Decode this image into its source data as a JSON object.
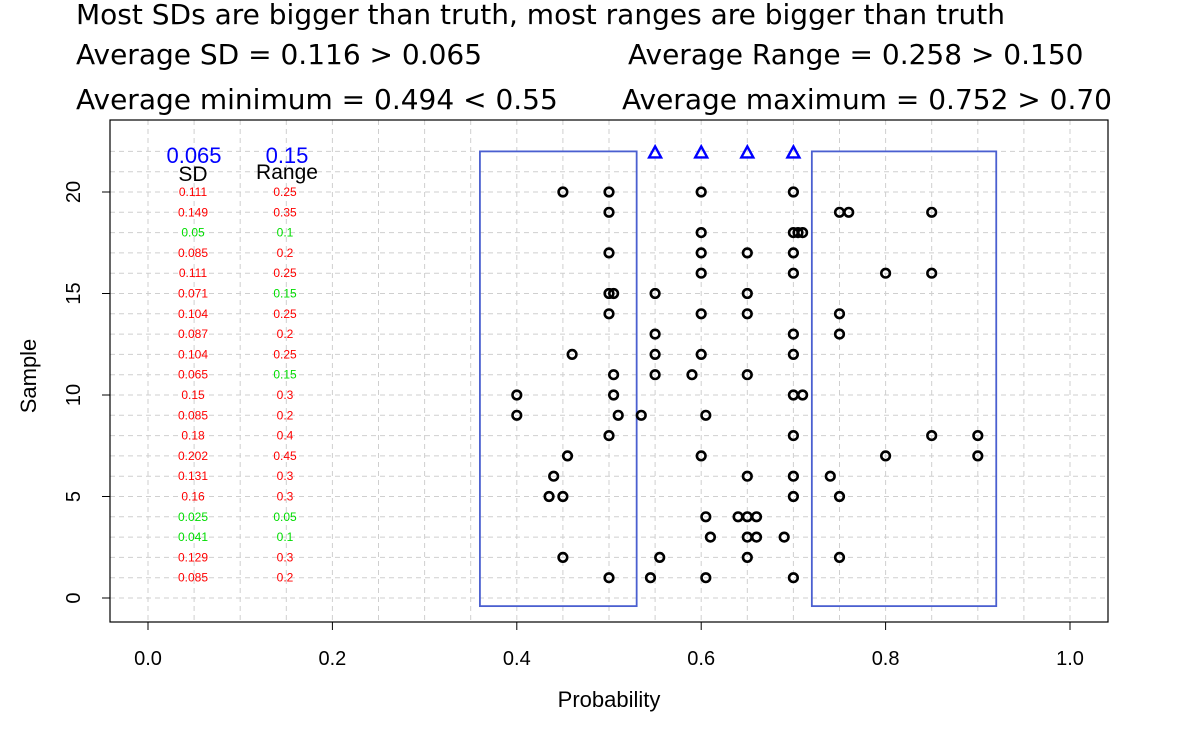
{
  "headlines": {
    "line1": "Most SDs are bigger than truth, most ranges are bigger than truth",
    "avg_sd": "Average SD = 0.116 > 0.065",
    "avg_range": "Average Range = 0.258 > 0.150",
    "avg_min": "Average minimum = 0.494 < 0.55",
    "avg_max": "Average maximum = 0.752 > 0.70"
  },
  "chart_data": {
    "type": "scatter",
    "xlabel": "Probability",
    "ylabel": "Sample",
    "xlim": [
      0,
      1
    ],
    "ylim": [
      0,
      22
    ],
    "x_ticks": [
      "0.0",
      "0.2",
      "0.4",
      "0.6",
      "0.8",
      "1.0"
    ],
    "y_ticks": [
      "0",
      "5",
      "10",
      "15",
      "20"
    ],
    "grid": true,
    "truth_markers": {
      "symbol": "triangle",
      "color": "#0000ff",
      "x": [
        0.55,
        0.6,
        0.65,
        0.7
      ],
      "y": 22
    },
    "reference_boxes": [
      {
        "x_min": 0.36,
        "x_max": 0.53,
        "y_min": -0.4,
        "y_max": 22
      },
      {
        "x_min": 0.72,
        "x_max": 0.92,
        "y_min": -0.4,
        "y_max": 22
      }
    ],
    "box_color": "#4a5fd0",
    "table": {
      "sd_truth": "0.065",
      "range_truth": "0.15",
      "sd_header": "SD",
      "range_header": "Range",
      "truth_color": "#0000ff",
      "over_color": "#ff0000",
      "ok_color": "#00dd00",
      "rows": [
        {
          "sample": 20,
          "sd": "0.111",
          "range": "0.25",
          "sd_ok": false,
          "range_ok": false
        },
        {
          "sample": 19,
          "sd": "0.149",
          "range": "0.35",
          "sd_ok": false,
          "range_ok": false
        },
        {
          "sample": 18,
          "sd": "0.05",
          "range": "0.1",
          "sd_ok": true,
          "range_ok": true
        },
        {
          "sample": 17,
          "sd": "0.085",
          "range": "0.2",
          "sd_ok": false,
          "range_ok": false
        },
        {
          "sample": 16,
          "sd": "0.111",
          "range": "0.25",
          "sd_ok": false,
          "range_ok": false
        },
        {
          "sample": 15,
          "sd": "0.071",
          "range": "0.15",
          "sd_ok": false,
          "range_ok": true
        },
        {
          "sample": 14,
          "sd": "0.104",
          "range": "0.25",
          "sd_ok": false,
          "range_ok": false
        },
        {
          "sample": 13,
          "sd": "0.087",
          "range": "0.2",
          "sd_ok": false,
          "range_ok": false
        },
        {
          "sample": 12,
          "sd": "0.104",
          "range": "0.25",
          "sd_ok": false,
          "range_ok": false
        },
        {
          "sample": 11,
          "sd": "0.065",
          "range": "0.15",
          "sd_ok": false,
          "range_ok": true
        },
        {
          "sample": 10,
          "sd": "0.15",
          "range": "0.3",
          "sd_ok": false,
          "range_ok": false
        },
        {
          "sample": 9,
          "sd": "0.085",
          "range": "0.2",
          "sd_ok": false,
          "range_ok": false
        },
        {
          "sample": 8,
          "sd": "0.18",
          "range": "0.4",
          "sd_ok": false,
          "range_ok": false
        },
        {
          "sample": 7,
          "sd": "0.202",
          "range": "0.45",
          "sd_ok": false,
          "range_ok": false
        },
        {
          "sample": 6,
          "sd": "0.131",
          "range": "0.3",
          "sd_ok": false,
          "range_ok": false
        },
        {
          "sample": 5,
          "sd": "0.16",
          "range": "0.3",
          "sd_ok": false,
          "range_ok": false
        },
        {
          "sample": 4,
          "sd": "0.025",
          "range": "0.05",
          "sd_ok": true,
          "range_ok": true
        },
        {
          "sample": 3,
          "sd": "0.041",
          "range": "0.1",
          "sd_ok": true,
          "range_ok": true
        },
        {
          "sample": 2,
          "sd": "0.129",
          "range": "0.3",
          "sd_ok": false,
          "range_ok": false
        },
        {
          "sample": 1,
          "sd": "0.085",
          "range": "0.2",
          "sd_ok": false,
          "range_ok": false
        }
      ]
    },
    "samples": [
      {
        "sample": 20,
        "x": [
          0.45,
          0.5,
          0.6,
          0.7
        ]
      },
      {
        "sample": 19,
        "x": [
          0.5,
          0.75,
          0.76,
          0.85
        ]
      },
      {
        "sample": 18,
        "x": [
          0.6,
          0.7,
          0.705,
          0.71
        ]
      },
      {
        "sample": 17,
        "x": [
          0.5,
          0.6,
          0.65,
          0.7
        ]
      },
      {
        "sample": 16,
        "x": [
          0.6,
          0.7,
          0.8,
          0.85
        ]
      },
      {
        "sample": 15,
        "x": [
          0.5,
          0.505,
          0.55,
          0.65
        ]
      },
      {
        "sample": 14,
        "x": [
          0.5,
          0.6,
          0.65,
          0.75
        ]
      },
      {
        "sample": 13,
        "x": [
          0.55,
          0.7,
          0.75
        ]
      },
      {
        "sample": 12,
        "x": [
          0.46,
          0.55,
          0.6,
          0.7
        ]
      },
      {
        "sample": 11,
        "x": [
          0.505,
          0.55,
          0.59,
          0.65
        ]
      },
      {
        "sample": 10,
        "x": [
          0.4,
          0.505,
          0.7,
          0.71
        ]
      },
      {
        "sample": 9,
        "x": [
          0.4,
          0.51,
          0.535,
          0.605
        ]
      },
      {
        "sample": 8,
        "x": [
          0.5,
          0.7,
          0.85,
          0.9
        ]
      },
      {
        "sample": 7,
        "x": [
          0.455,
          0.6,
          0.8,
          0.9
        ]
      },
      {
        "sample": 6,
        "x": [
          0.44,
          0.65,
          0.7,
          0.74
        ]
      },
      {
        "sample": 5,
        "x": [
          0.435,
          0.45,
          0.7,
          0.75
        ]
      },
      {
        "sample": 4,
        "x": [
          0.605,
          0.64,
          0.65,
          0.66
        ]
      },
      {
        "sample": 3,
        "x": [
          0.61,
          0.65,
          0.66,
          0.69
        ]
      },
      {
        "sample": 2,
        "x": [
          0.45,
          0.555,
          0.65,
          0.75
        ]
      },
      {
        "sample": 1,
        "x": [
          0.5,
          0.545,
          0.605,
          0.7
        ]
      }
    ]
  }
}
